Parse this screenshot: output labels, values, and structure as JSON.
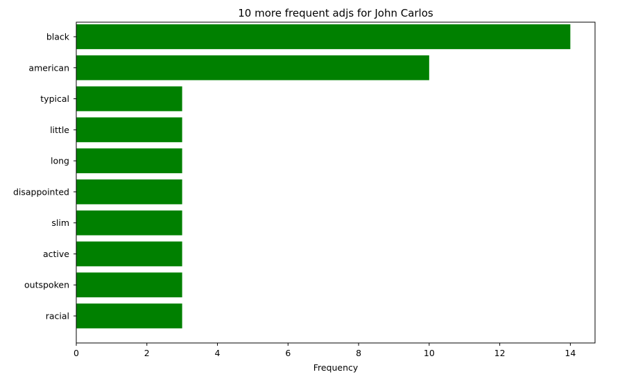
{
  "chart_data": {
    "type": "bar",
    "orientation": "horizontal",
    "title": "10 more frequent adjs for John Carlos",
    "xlabel": "Frequency",
    "ylabel": "",
    "categories": [
      "black",
      "american",
      "typical",
      "little",
      "long",
      "disappointed",
      "slim",
      "active",
      "outspoken",
      "racial"
    ],
    "values": [
      14,
      10,
      3,
      3,
      3,
      3,
      3,
      3,
      3,
      3
    ],
    "xlim": [
      0,
      14.7
    ],
    "xticks": [
      0,
      2,
      4,
      6,
      8,
      10,
      12,
      14
    ],
    "bar_color": "#008000",
    "grid": false,
    "legend": "none"
  }
}
